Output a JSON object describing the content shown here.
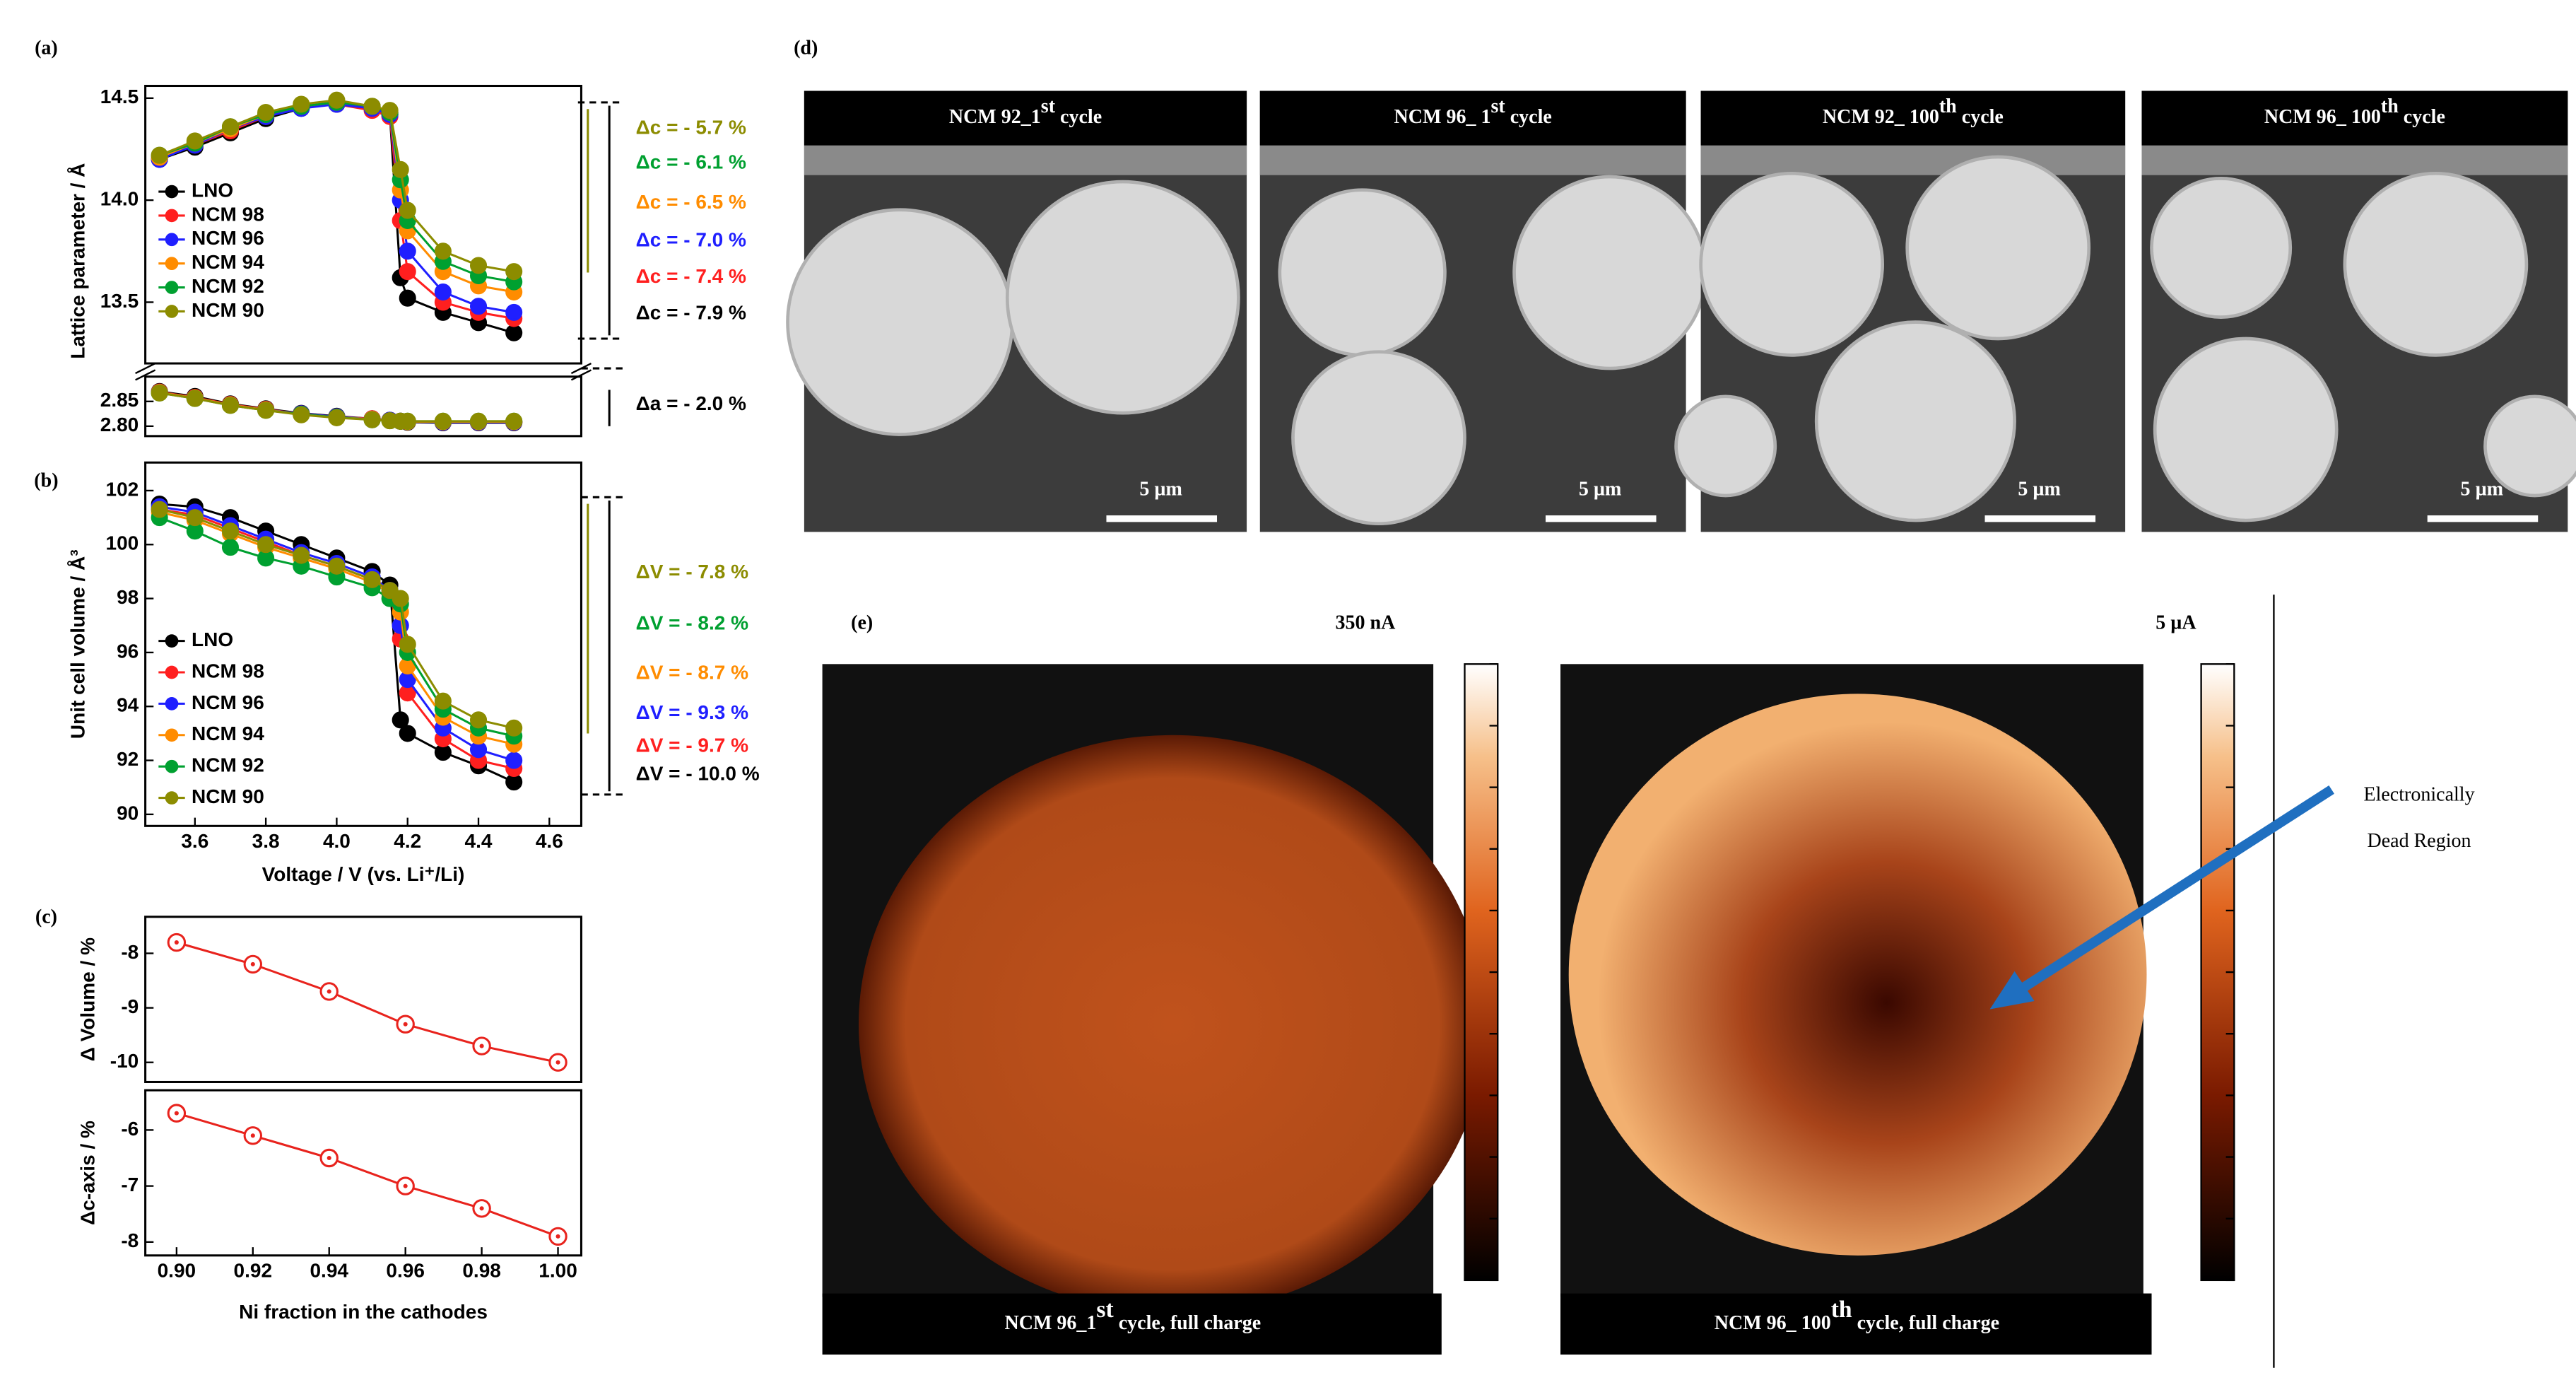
{
  "chart_data": [
    {
      "type": "line",
      "ylabel": "Lattice parameter / Å",
      "x": [
        3.5,
        3.6,
        3.7,
        3.8,
        3.9,
        4.0,
        4.1,
        4.15,
        4.18,
        4.2,
        4.3,
        4.4,
        4.5
      ],
      "xlim": [
        3.46,
        4.69
      ],
      "ylim": [
        13.2,
        14.56
      ],
      "yticks": [
        13.5,
        {
          "value": 14,
          "label": "14.0"
        },
        14.5
      ],
      "series": [
        {
          "name": "LNO",
          "color": "#000000",
          "values": [
            14.2,
            14.26,
            14.33,
            14.4,
            14.45,
            14.48,
            14.45,
            14.42,
            13.62,
            13.52,
            13.45,
            13.4,
            13.35
          ]
        },
        {
          "name": "NCM 98",
          "color": "#ff1f1f",
          "values": [
            14.21,
            14.27,
            14.34,
            14.41,
            14.46,
            14.47,
            14.44,
            14.41,
            13.9,
            13.65,
            13.5,
            13.45,
            13.42
          ]
        },
        {
          "name": "NCM 96",
          "color": "#1f1fff",
          "values": [
            14.2,
            14.27,
            14.35,
            14.41,
            14.45,
            14.47,
            14.45,
            14.42,
            14.0,
            13.75,
            13.55,
            13.48,
            13.45
          ]
        },
        {
          "name": "NCM 94",
          "color": "#ff8c00",
          "values": [
            14.21,
            14.28,
            14.35,
            14.42,
            14.46,
            14.48,
            14.46,
            14.43,
            14.05,
            13.85,
            13.65,
            13.58,
            13.55
          ]
        },
        {
          "name": "NCM 92",
          "color": "#00a030",
          "values": [
            14.22,
            14.28,
            14.36,
            14.42,
            14.46,
            14.48,
            14.46,
            14.43,
            14.1,
            13.9,
            13.7,
            13.63,
            13.6
          ]
        },
        {
          "name": "NCM 90",
          "color": "#8c8c00",
          "values": [
            14.22,
            14.29,
            14.36,
            14.43,
            14.47,
            14.49,
            14.46,
            14.44,
            14.15,
            13.95,
            13.75,
            13.68,
            13.65
          ]
        }
      ],
      "annotations": [
        {
          "text": "Δc = - 5.7 %",
          "color": "#8c8c00"
        },
        {
          "text": "Δc = - 6.1 %",
          "color": "#00a030"
        },
        {
          "text": "Δc = - 6.5 %",
          "color": "#ff8c00"
        },
        {
          "text": "Δc = - 7.0 %",
          "color": "#1f1fff"
        },
        {
          "text": "Δc = - 7.4 %",
          "color": "#ff1f1f"
        },
        {
          "text": "Δc = - 7.9 %",
          "color": "#000000"
        }
      ]
    },
    {
      "type": "line",
      "x": [
        3.5,
        3.6,
        3.7,
        3.8,
        3.9,
        4.0,
        4.1,
        4.15,
        4.18,
        4.2,
        4.3,
        4.4,
        4.5
      ],
      "xlim": [
        3.46,
        4.69
      ],
      "ylim": [
        2.78,
        2.9
      ],
      "yticks": [
        {
          "value": 2.8,
          "label": "2.80"
        },
        {
          "value": 2.85,
          "label": "2.85"
        }
      ],
      "series": [
        {
          "color": "#000000",
          "values": [
            2.87,
            2.86,
            2.845,
            2.835,
            2.826,
            2.82,
            2.815,
            2.812,
            2.81,
            2.808,
            2.807,
            2.807,
            2.807
          ]
        },
        {
          "color": "#ff1f1f",
          "values": [
            2.869,
            2.858,
            2.844,
            2.834,
            2.825,
            2.819,
            2.815,
            2.812,
            2.81,
            2.809,
            2.808,
            2.808,
            2.808
          ]
        },
        {
          "color": "#1f1fff",
          "values": [
            2.868,
            2.857,
            2.843,
            2.833,
            2.825,
            2.819,
            2.814,
            2.812,
            2.81,
            2.809,
            2.808,
            2.808,
            2.808
          ]
        },
        {
          "color": "#ff8c00",
          "values": [
            2.868,
            2.857,
            2.843,
            2.833,
            2.824,
            2.818,
            2.814,
            2.811,
            2.81,
            2.809,
            2.809,
            2.809,
            2.809
          ]
        },
        {
          "color": "#00a030",
          "values": [
            2.867,
            2.856,
            2.842,
            2.832,
            2.824,
            2.818,
            2.813,
            2.811,
            2.81,
            2.81,
            2.81,
            2.81,
            2.81
          ]
        },
        {
          "color": "#8c8c00",
          "values": [
            2.867,
            2.856,
            2.842,
            2.832,
            2.823,
            2.817,
            2.813,
            2.811,
            2.81,
            2.81,
            2.81,
            2.81,
            2.81
          ]
        }
      ],
      "annotations": [
        {
          "text": "Δa = - 2.0 %",
          "color": "#000000"
        }
      ]
    },
    {
      "type": "line",
      "xlabel": "Voltage / V (vs. Li⁺/Li)",
      "ylabel": "Unit cell volume / Å³",
      "x": [
        3.5,
        3.6,
        3.7,
        3.8,
        3.9,
        4.0,
        4.1,
        4.15,
        4.18,
        4.2,
        4.3,
        4.4,
        4.5
      ],
      "xlim": [
        3.46,
        4.69
      ],
      "ylim": [
        89.57,
        103.04
      ],
      "xticks": [
        3.6,
        3.8,
        {
          "value": 4,
          "label": "4.0"
        },
        4.2,
        4.4,
        4.6
      ],
      "yticks": [
        90,
        92,
        94,
        96,
        98,
        100,
        102
      ],
      "series": [
        {
          "name": "LNO",
          "color": "#000000",
          "values": [
            101.5,
            101.4,
            101,
            100.5,
            100,
            99.5,
            99,
            98.5,
            93.5,
            93.0,
            92.3,
            91.8,
            91.2
          ]
        },
        {
          "name": "NCM 98",
          "color": "#ff1f1f",
          "values": [
            101.3,
            101.1,
            100.6,
            100.1,
            99.6,
            99.2,
            98.7,
            98.2,
            96.5,
            94.5,
            92.8,
            92.0,
            91.7
          ]
        },
        {
          "name": "NCM 96",
          "color": "#1f1fff",
          "values": [
            101.4,
            101.2,
            100.7,
            100.2,
            99.7,
            99.3,
            98.8,
            98.3,
            97.0,
            95.0,
            93.2,
            92.4,
            92.0
          ]
        },
        {
          "name": "NCM 94",
          "color": "#ff8c00",
          "values": [
            101.2,
            100.9,
            100.4,
            99.9,
            99.5,
            99.1,
            98.6,
            98.2,
            97.5,
            95.5,
            93.6,
            92.9,
            92.6
          ]
        },
        {
          "name": "NCM 92",
          "color": "#00a030",
          "values": [
            101.0,
            100.5,
            99.9,
            99.5,
            99.2,
            98.8,
            98.4,
            98.0,
            97.8,
            96.0,
            93.9,
            93.2,
            92.9
          ]
        },
        {
          "name": "NCM 90",
          "color": "#8c8c00",
          "values": [
            101.3,
            101.0,
            100.5,
            100.0,
            99.6,
            99.2,
            98.7,
            98.3,
            98.0,
            96.3,
            94.2,
            93.5,
            93.2
          ]
        }
      ],
      "annotations": [
        {
          "text": "ΔV = - 7.8 %",
          "color": "#8c8c00"
        },
        {
          "text": "ΔV = - 8.2 %",
          "color": "#00a030"
        },
        {
          "text": "ΔV = - 8.7 %",
          "color": "#ff8c00"
        },
        {
          "text": "ΔV = - 9.3 %",
          "color": "#1f1fff"
        },
        {
          "text": "ΔV = - 9.7 %",
          "color": "#ff1f1f"
        },
        {
          "text": "ΔV = - 10.0 %",
          "color": "#000000"
        }
      ]
    },
    {
      "type": "line",
      "marker": "open-circle",
      "ylabel": "Δ Volume / %",
      "x": [
        0.9,
        0.92,
        0.94,
        0.96,
        0.98,
        1.0
      ],
      "xlim": [
        0.8918,
        1.0061
      ],
      "ylim": [
        -10.36,
        -7.33
      ],
      "yticks": [
        -8,
        -9,
        -10
      ],
      "series": [
        {
          "color": "#e8231d",
          "values": [
            -7.8,
            -8.2,
            -8.7,
            -9.3,
            -9.7,
            -10.0
          ]
        }
      ]
    },
    {
      "type": "line",
      "marker": "open-circle",
      "xlabel": "Ni fraction in the cathodes",
      "ylabel": "Δc-axis / %",
      "x": [
        0.9,
        0.92,
        0.94,
        0.96,
        0.98,
        1.0
      ],
      "xlim": [
        0.8918,
        1.0061
      ],
      "ylim": [
        -8.24,
        -5.29
      ],
      "xticks": [
        {
          "value": 0.9,
          "label": "0.90"
        },
        0.92,
        0.94,
        0.96,
        0.98,
        {
          "value": 1,
          "label": "1.00"
        }
      ],
      "yticks": [
        -6,
        -7,
        -8
      ],
      "series": [
        {
          "color": "#e8231d",
          "values": [
            -5.7,
            -6.1,
            -6.5,
            -7.0,
            -7.4,
            -7.9
          ]
        }
      ]
    }
  ],
  "panels": {
    "labels": [
      "(a)",
      "(b)",
      "(c)",
      "(d)",
      "(e)"
    ],
    "sem": [
      {
        "caption": {
          "main": "NCM 92_1",
          "sup": "st",
          "rest": " cycle"
        },
        "scale": "5 µm"
      },
      {
        "caption": {
          "main": "NCM 96_ 1",
          "sup": "st",
          "rest": " cycle"
        },
        "scale": "5 µm"
      },
      {
        "caption": {
          "main": "NCM 92_ 100",
          "sup": "th",
          "rest": " cycle"
        },
        "scale": "5 µm"
      },
      {
        "caption": {
          "main": "NCM 96_ 100",
          "sup": "th",
          "rest": " cycle"
        },
        "scale": "5 µm"
      }
    ],
    "cafm": [
      {
        "current": "350 nA",
        "caption": {
          "main": "NCM 96_1",
          "sup": "st",
          "rest": " cycle, full charge"
        }
      },
      {
        "current": "5 µA",
        "caption": {
          "main": "NCM 96_ 100",
          "sup": "th",
          "rest": " cycle, full charge"
        }
      }
    ],
    "annotation": [
      "Electronically",
      "Dead Region"
    ]
  }
}
